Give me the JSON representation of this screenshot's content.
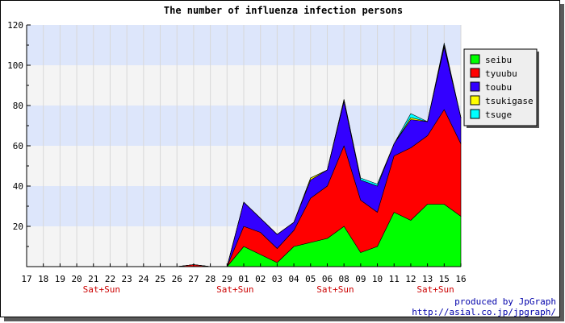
{
  "chart_data": {
    "type": "area",
    "stacked": true,
    "title": "The number of influenza infection persons",
    "x": [
      "17",
      "18",
      "19",
      "20",
      "21",
      "22",
      "23",
      "24",
      "25",
      "26",
      "27",
      "28",
      "29",
      "01",
      "02",
      "03",
      "04",
      "05",
      "06",
      "08",
      "09",
      "10",
      "11",
      "12",
      "13",
      "15",
      "16"
    ],
    "weekend_marks": [
      {
        "x": "21",
        "label": "Sat+Sun"
      },
      {
        "x": "29",
        "label": "Sat+Sun"
      },
      {
        "x": "06",
        "label": "Sat+Sun"
      },
      {
        "x": "13",
        "label": "Sat+Sun"
      }
    ],
    "ylim": [
      0,
      120
    ],
    "yticks": [
      20,
      40,
      60,
      80,
      100,
      120
    ],
    "grid": true,
    "legend_position": "right",
    "series": [
      {
        "name": "seibu",
        "color": "#00ff00",
        "values": [
          0,
          0,
          0,
          0,
          0,
          0,
          0,
          0,
          0,
          0,
          0,
          0,
          0,
          10,
          6,
          2,
          10,
          12,
          14,
          20,
          7,
          10,
          27,
          23,
          31,
          31,
          25
        ]
      },
      {
        "name": "tyuubu",
        "color": "#ff0000",
        "values": [
          0,
          0,
          0,
          0,
          0,
          0,
          0,
          0,
          0,
          0,
          1,
          0,
          0,
          10,
          11,
          7,
          8,
          22,
          26,
          40,
          26,
          17,
          28,
          36,
          34,
          47,
          36
        ]
      },
      {
        "name": "toubu",
        "color": "#3300ff",
        "values": [
          0,
          0,
          0,
          0,
          0,
          0,
          0,
          0,
          0,
          0,
          0,
          0,
          0,
          12,
          7,
          7,
          4,
          9,
          8,
          22,
          10,
          13,
          6,
          14,
          7,
          31,
          13
        ]
      },
      {
        "name": "tsukigase",
        "color": "#ffff00",
        "values": [
          0,
          0,
          0,
          0,
          0,
          0,
          0,
          0,
          0,
          0,
          0,
          0,
          0,
          0,
          0,
          0,
          0,
          1,
          0,
          1,
          0,
          0,
          0,
          1,
          0,
          1,
          0
        ]
      },
      {
        "name": "tsuge",
        "color": "#00ffff",
        "values": [
          0,
          0,
          0,
          0,
          0,
          0,
          0,
          0,
          0,
          0,
          0,
          0,
          0,
          0,
          0,
          0,
          0,
          0,
          0,
          0,
          1,
          1,
          0,
          2,
          0,
          1,
          0
        ]
      }
    ]
  },
  "credit": {
    "line1": "produced by JpGraph",
    "line2": "http://asial.co.jp/jpgraph/"
  }
}
